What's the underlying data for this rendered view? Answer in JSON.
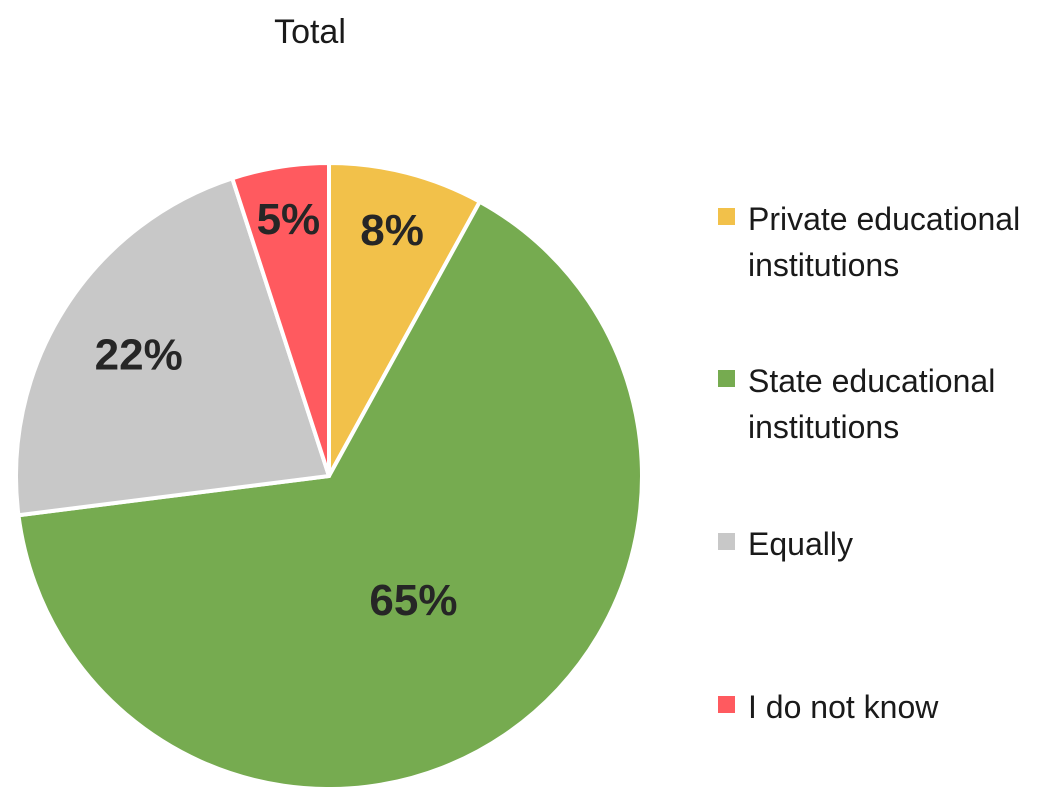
{
  "chart_data": {
    "type": "pie",
    "title": "Total",
    "categories": [
      "Private educational institutions",
      "State educational institutions",
      "Equally",
      "I do not know"
    ],
    "values": [
      8,
      65,
      22,
      5
    ],
    "value_labels": [
      "8%",
      "65%",
      "22%",
      "5%"
    ],
    "colors": [
      "#f2c14a",
      "#76ab50",
      "#c8c8c8",
      "#ff5a5f"
    ],
    "start_angle_deg": 0,
    "direction": "clockwise",
    "legend_position": "right"
  }
}
